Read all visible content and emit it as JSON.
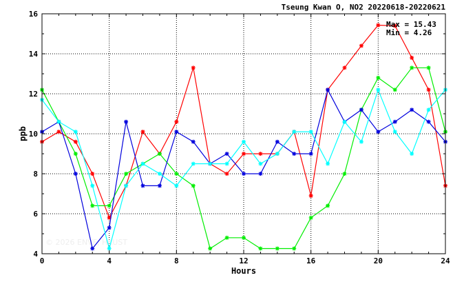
{
  "chart_data": {
    "type": "line",
    "title": "Tseung Kwan O, NO2 20220618-20220621",
    "xlabel": "Hours",
    "ylabel": "ppb",
    "xlim": [
      0,
      24
    ],
    "ylim": [
      4,
      16
    ],
    "x_ticks": [
      "0",
      "4",
      "8",
      "12",
      "16",
      "20",
      "24"
    ],
    "y_ticks": [
      "4",
      "6",
      "8",
      "10",
      "12",
      "14",
      "16"
    ],
    "grid": true,
    "x": [
      0,
      1,
      2,
      3,
      4,
      5,
      6,
      7,
      8,
      9,
      10,
      11,
      12,
      13,
      14,
      15,
      16,
      17,
      18,
      19,
      20,
      21,
      22,
      23,
      24
    ],
    "series": [
      {
        "color": "#ff0000",
        "values": [
          9.6,
          10.1,
          9.6,
          8.0,
          5.8,
          7.4,
          10.1,
          9.0,
          10.6,
          13.3,
          8.5,
          8.0,
          9.0,
          9.0,
          9.0,
          10.1,
          6.9,
          12.2,
          13.3,
          14.4,
          15.43,
          15.4,
          13.8,
          12.2,
          7.4
        ]
      },
      {
        "color": "#00ee00",
        "values": [
          12.2,
          10.6,
          9.0,
          6.4,
          6.4,
          8.0,
          8.5,
          9.0,
          8.0,
          7.4,
          4.26,
          4.8,
          4.8,
          4.26,
          4.26,
          4.26,
          5.8,
          6.4,
          8.0,
          11.2,
          12.8,
          12.2,
          13.3,
          13.3,
          10.1
        ]
      },
      {
        "color": "#0000dd",
        "values": [
          10.1,
          10.6,
          8.0,
          4.26,
          5.3,
          10.6,
          7.4,
          7.4,
          10.1,
          9.6,
          8.5,
          9.0,
          8.0,
          8.0,
          9.6,
          9.0,
          9.0,
          12.2,
          10.6,
          11.2,
          10.1,
          10.6,
          11.2,
          10.6,
          9.6
        ]
      },
      {
        "color": "#00ffff",
        "values": [
          11.7,
          10.6,
          10.1,
          7.4,
          4.26,
          7.4,
          8.5,
          8.0,
          7.4,
          8.5,
          8.5,
          8.5,
          9.6,
          8.5,
          9.0,
          10.1,
          10.1,
          8.5,
          10.6,
          9.6,
          12.2,
          10.1,
          9.0,
          11.2,
          12.2
        ]
      }
    ],
    "annotations": {
      "max_label": "Max = 15.43",
      "min_label": "Min =  4.26"
    },
    "watermark": "© 2026 ENVF, HKUST"
  }
}
